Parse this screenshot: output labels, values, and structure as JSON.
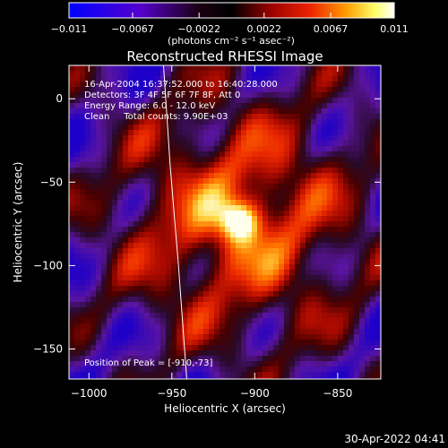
{
  "chart_data": {
    "type": "heatmap",
    "title": "Reconstructed RHESSI Image",
    "xlabel": "Heliocentric X (arcsec)",
    "ylabel": "Heliocentric Y (arcsec)",
    "xlim": [
      -1012,
      -824
    ],
    "ylim": [
      -168,
      20
    ],
    "x_ticks": [
      -1000,
      -950,
      -900,
      -850
    ],
    "x_tick_labels": [
      "−1000",
      "−950",
      "−900",
      "−850"
    ],
    "y_ticks": [
      0,
      -50,
      -100,
      -150
    ],
    "y_tick_labels": [
      "0",
      "−50",
      "−100",
      "−150"
    ],
    "colorbar": {
      "min": -0.011,
      "max": 0.011,
      "ticks": [
        -0.011,
        -0.0067,
        -0.0022,
        0.0022,
        0.0067,
        0.011
      ],
      "tick_labels": [
        "−0.011",
        "−0.0067",
        "−0.0022",
        "0.0022",
        "0.0067",
        "0.011"
      ],
      "unit_label": "(photons cm⁻² s⁻¹ asec⁻²)",
      "colors": [
        "#0000ff",
        "#6600cc",
        "#1a0010",
        "#000000",
        "#aa0000",
        "#ff3300",
        "#ffaa00",
        "#ffff80",
        "#ffffff"
      ]
    },
    "peak": {
      "x": -910,
      "y": -73
    },
    "annotations": {
      "line1": "16-Apr-2004 16:37:52.000 to 16:40:28.000",
      "line2": "Detectors: 3F 4F 5F 6F 7F 8F, Att 0",
      "line3": "Energy Range: 6.0 - 12.0 keV",
      "line4": "Clean     Total counts: 9.90E+03",
      "peak_label": "Position of Peak = [-910,-73]"
    },
    "limb_curve": [
      [
        -955,
        20
      ],
      [
        -951,
        -40
      ],
      [
        -946,
        -100
      ],
      [
        -941,
        -168
      ]
    ],
    "grid": false
  },
  "footer": {
    "timestamp": "30-Apr-2022 04:41"
  }
}
